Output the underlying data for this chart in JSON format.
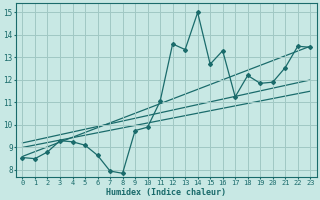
{
  "title": "",
  "xlabel": "Humidex (Indice chaleur)",
  "xlim": [
    -0.5,
    23.5
  ],
  "ylim": [
    7.7,
    15.4
  ],
  "xticks": [
    0,
    1,
    2,
    3,
    4,
    5,
    6,
    7,
    8,
    9,
    10,
    11,
    12,
    13,
    14,
    15,
    16,
    17,
    18,
    19,
    20,
    21,
    22,
    23
  ],
  "yticks": [
    8,
    9,
    10,
    11,
    12,
    13,
    14,
    15
  ],
  "bg_color": "#c8e8e4",
  "grid_color": "#a0c8c4",
  "line_color": "#1a6b6b",
  "data_line": {
    "x": [
      0,
      1,
      2,
      3,
      4,
      5,
      6,
      7,
      8,
      9,
      10,
      11,
      12,
      13,
      14,
      15,
      16,
      17,
      18,
      19,
      20,
      21,
      22,
      23
    ],
    "y": [
      8.55,
      8.5,
      8.8,
      9.3,
      9.25,
      9.1,
      8.65,
      7.95,
      7.85,
      9.75,
      9.9,
      11.05,
      13.6,
      13.35,
      15.0,
      12.7,
      13.3,
      11.25,
      12.2,
      11.85,
      11.9,
      12.55,
      13.5,
      13.45
    ]
  },
  "trend_line1": {
    "x": [
      0,
      23
    ],
    "y": [
      8.6,
      13.5
    ]
  },
  "trend_line2": {
    "x": [
      0,
      23
    ],
    "y": [
      9.0,
      11.5
    ]
  },
  "trend_line3": {
    "x": [
      0,
      23
    ],
    "y": [
      9.2,
      12.0
    ]
  }
}
